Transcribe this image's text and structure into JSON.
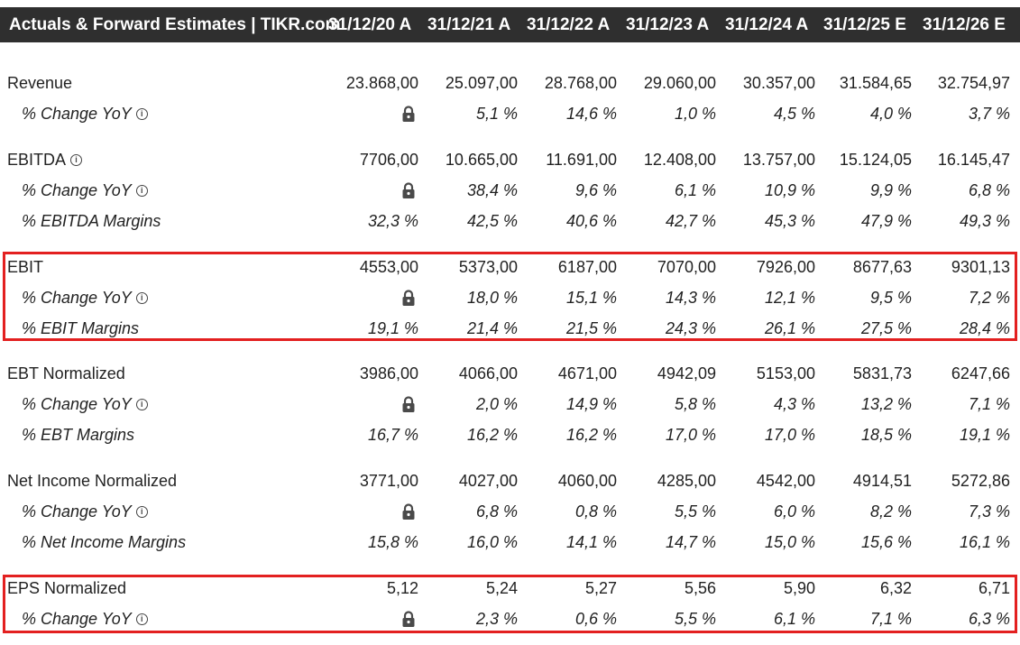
{
  "header": {
    "title": "Actuals & Forward Estimates | TIKR.com",
    "periods": [
      "31/12/20 A",
      "31/12/21 A",
      "31/12/22 A",
      "31/12/23 A",
      "31/12/24 A",
      "31/12/25 E",
      "31/12/26 E"
    ]
  },
  "rows": [
    {
      "label": "Revenue",
      "values": [
        "23.868,00",
        "25.097,00",
        "28.768,00",
        "29.060,00",
        "30.357,00",
        "31.584,65",
        "32.754,97"
      ]
    },
    {
      "label": "% Change YoY",
      "values": [
        "",
        "5,1 %",
        "14,6 %",
        "1,0 %",
        "4,5 %",
        "4,0 %",
        "3,7 %"
      ]
    },
    {
      "label": "EBITDA",
      "values": [
        "7706,00",
        "10.665,00",
        "11.691,00",
        "12.408,00",
        "13.757,00",
        "15.124,05",
        "16.145,47"
      ]
    },
    {
      "label": "% Change YoY",
      "values": [
        "",
        "38,4 %",
        "9,6 %",
        "6,1 %",
        "10,9 %",
        "9,9 %",
        "6,8 %"
      ]
    },
    {
      "label": "% EBITDA Margins",
      "values": [
        "32,3 %",
        "42,5 %",
        "40,6 %",
        "42,7 %",
        "45,3 %",
        "47,9 %",
        "49,3 %"
      ]
    },
    {
      "label": "EBIT",
      "values": [
        "4553,00",
        "5373,00",
        "6187,00",
        "7070,00",
        "7926,00",
        "8677,63",
        "9301,13"
      ]
    },
    {
      "label": "% Change YoY",
      "values": [
        "",
        "18,0 %",
        "15,1 %",
        "14,3 %",
        "12,1 %",
        "9,5 %",
        "7,2 %"
      ]
    },
    {
      "label": "% EBIT Margins",
      "values": [
        "19,1 %",
        "21,4 %",
        "21,5 %",
        "24,3 %",
        "26,1 %",
        "27,5 %",
        "28,4 %"
      ]
    },
    {
      "label": "EBT Normalized",
      "values": [
        "3986,00",
        "4066,00",
        "4671,00",
        "4942,09",
        "5153,00",
        "5831,73",
        "6247,66"
      ]
    },
    {
      "label": "% Change YoY",
      "values": [
        "",
        "2,0 %",
        "14,9 %",
        "5,8 %",
        "4,3 %",
        "13,2 %",
        "7,1 %"
      ]
    },
    {
      "label": "% EBT Margins",
      "values": [
        "16,7 %",
        "16,2 %",
        "16,2 %",
        "17,0 %",
        "17,0 %",
        "18,5 %",
        "19,1 %"
      ]
    },
    {
      "label": "Net Income Normalized",
      "values": [
        "3771,00",
        "4027,00",
        "4060,00",
        "4285,00",
        "4542,00",
        "4914,51",
        "5272,86"
      ]
    },
    {
      "label": "% Change YoY",
      "values": [
        "",
        "6,8 %",
        "0,8 %",
        "5,5 %",
        "6,0 %",
        "8,2 %",
        "7,3 %"
      ]
    },
    {
      "label": "% Net Income Margins",
      "values": [
        "15,8 %",
        "16,0 %",
        "14,1 %",
        "14,7 %",
        "15,0 %",
        "15,6 %",
        "16,1 %"
      ]
    },
    {
      "label": "EPS Normalized",
      "values": [
        "5,12",
        "5,24",
        "5,27",
        "5,56",
        "5,90",
        "6,32",
        "6,71"
      ]
    },
    {
      "label": "% Change YoY",
      "values": [
        "",
        "2,3 %",
        "0,6 %",
        "5,5 %",
        "6,1 %",
        "7,1 %",
        "6,3 %"
      ]
    }
  ],
  "icons": {
    "info": "info-circle-icon",
    "lock": "lock-icon"
  },
  "colors": {
    "header_bg": "#2f2f2f",
    "highlight": "#e32020"
  }
}
